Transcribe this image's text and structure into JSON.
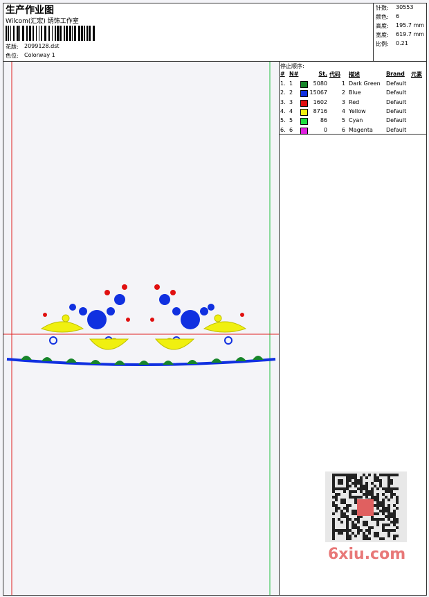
{
  "header": {
    "title": "生产作业图",
    "studio": "Wilcom(汇宏) 绣饰工作室",
    "design_label": "花版:",
    "design": "2099128.dst",
    "colorway_label": "色位:",
    "colorway": "Colorway 1"
  },
  "info": [
    {
      "label": "针数:",
      "value": "30553"
    },
    {
      "label": "颜色:",
      "value": "6"
    },
    {
      "label": "高度:",
      "value": "195.7 mm"
    },
    {
      "label": "宽度:",
      "value": "619.7 mm"
    },
    {
      "label": "比例:",
      "value": "0.21"
    }
  ],
  "table": {
    "title": "停止顺序:",
    "columns": [
      "#",
      "N#",
      "St.",
      "代码",
      "描述",
      "Brand",
      "元素"
    ],
    "rows": [
      {
        "index": "1.",
        "n": "1",
        "stitches": 5080,
        "code": 1,
        "color": "#17852a",
        "description": "Dark Green",
        "brand": "Default"
      },
      {
        "index": "2.",
        "n": "2",
        "stitches": 15067,
        "code": 2,
        "color": "#1030e0",
        "description": "Blue",
        "brand": "Default"
      },
      {
        "index": "3.",
        "n": "3",
        "stitches": 1602,
        "code": 3,
        "color": "#e01010",
        "description": "Red",
        "brand": "Default"
      },
      {
        "index": "4.",
        "n": "4",
        "stitches": 8716,
        "code": 4,
        "color": "#f0f010",
        "description": "Yellow",
        "brand": "Default"
      },
      {
        "index": "5.",
        "n": "5",
        "stitches": 86,
        "code": 5,
        "color": "#20e040",
        "description": "Cyan",
        "brand": "Default"
      },
      {
        "index": "6.",
        "n": "6",
        "stitches": 0,
        "code": 6,
        "color": "#e020e0",
        "description": "Magenta",
        "brand": "Default"
      }
    ]
  },
  "watermark": "6xiu.com"
}
